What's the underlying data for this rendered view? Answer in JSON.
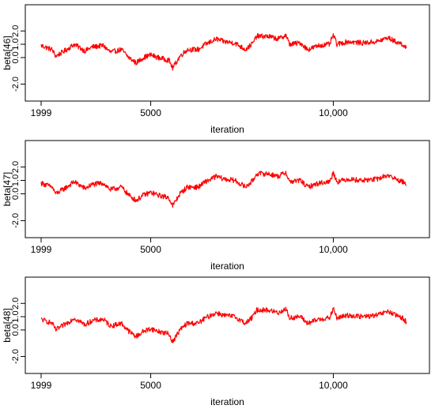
{
  "chart_data": [
    {
      "type": "line",
      "ylabel": "beta[46]",
      "xlabel": "iteration",
      "xlim": [
        1999,
        12200
      ],
      "ylim": [
        -2.8,
        3.5
      ],
      "xticks": [
        1999,
        5000,
        10000
      ],
      "xtick_labels": [
        "1999",
        "5000",
        "10,000"
      ],
      "yticks": [
        -2.0,
        0.0,
        1.0,
        2.0
      ],
      "ytick_labels": [
        "-2.0",
        "0.0",
        "1.0",
        "2.0"
      ],
      "grid": false,
      "color": "#ff0000",
      "series": [
        {
          "x": [
            2000,
            2300,
            2400,
            2700,
            2900,
            3200,
            3400,
            3700,
            3900,
            4200,
            4400,
            4600,
            4800,
            5000,
            5200,
            5500,
            5600,
            5800,
            6000,
            6300,
            6500,
            6800,
            7000,
            7300,
            7600,
            7800,
            7900,
            8200,
            8500,
            8700,
            8800,
            9100,
            9300,
            9600,
            9900,
            10000,
            10100,
            10400,
            10800,
            11200,
            11500,
            11700,
            11900,
            12000
          ],
          "y": [
            0.9,
            0.6,
            0.1,
            0.6,
            1.0,
            0.5,
            0.8,
            0.9,
            0.4,
            0.6,
            0.0,
            -0.4,
            0.0,
            0.2,
            0.0,
            -0.2,
            -0.8,
            0.1,
            0.6,
            0.6,
            1.0,
            1.4,
            1.2,
            1.1,
            0.6,
            1.1,
            1.6,
            1.6,
            1.4,
            1.7,
            1.0,
            1.1,
            0.6,
            0.9,
            1.0,
            1.7,
            1.0,
            1.2,
            1.1,
            1.2,
            1.5,
            1.2,
            1.0,
            0.7
          ]
        }
      ]
    },
    {
      "type": "line",
      "ylabel": "beta[47]",
      "xlabel": "iteration",
      "xlim": [
        1999,
        12200
      ],
      "ylim": [
        -2.8,
        3.5
      ],
      "xticks": [
        1999,
        5000,
        10000
      ],
      "xtick_labels": [
        "1999",
        "5000",
        "10,000"
      ],
      "yticks": [
        -2.0,
        0.0,
        1.0,
        2.0
      ],
      "ytick_labels": [
        "-2.0",
        "0.0",
        "1.0",
        "2.0"
      ],
      "grid": false,
      "color": "#ff0000",
      "series": [
        {
          "x": [
            2000,
            2300,
            2400,
            2700,
            2900,
            3200,
            3400,
            3700,
            3900,
            4200,
            4400,
            4600,
            4800,
            5000,
            5200,
            5500,
            5600,
            5800,
            6000,
            6300,
            6500,
            6800,
            7000,
            7300,
            7600,
            7800,
            7900,
            8200,
            8500,
            8700,
            8800,
            9100,
            9300,
            9600,
            9900,
            10000,
            10100,
            10400,
            10800,
            11200,
            11500,
            11700,
            11900,
            12000
          ],
          "y": [
            0.8,
            0.5,
            0.0,
            0.5,
            0.9,
            0.4,
            0.7,
            0.8,
            0.3,
            0.5,
            -0.1,
            -0.5,
            -0.1,
            0.1,
            -0.1,
            -0.3,
            -0.9,
            0.0,
            0.5,
            0.5,
            0.9,
            1.3,
            1.1,
            1.0,
            0.5,
            1.0,
            1.5,
            1.5,
            1.3,
            1.6,
            0.9,
            1.0,
            0.5,
            0.8,
            0.9,
            1.6,
            0.9,
            1.1,
            1.0,
            1.1,
            1.4,
            1.1,
            0.9,
            0.6
          ]
        }
      ]
    },
    {
      "type": "line",
      "ylabel": "beta[48]",
      "xlabel": "iteration",
      "xlim": [
        1999,
        12200
      ],
      "ylim": [
        -2.8,
        3.5
      ],
      "xticks": [
        1999,
        5000,
        10000
      ],
      "xtick_labels": [
        "1999",
        "5000",
        "10,000"
      ],
      "yticks": [
        -2.0,
        0.0,
        1.0,
        2.0
      ],
      "ytick_labels": [
        "-2.0",
        "0.0",
        "1.0",
        "2.0"
      ],
      "grid": false,
      "color": "#ff0000",
      "series": [
        {
          "x": [
            2000,
            2300,
            2400,
            2700,
            2900,
            3200,
            3400,
            3700,
            3900,
            4200,
            4400,
            4600,
            4800,
            5000,
            5200,
            5500,
            5600,
            5800,
            6000,
            6300,
            6500,
            6800,
            7000,
            7300,
            7600,
            7800,
            7900,
            8200,
            8500,
            8700,
            8800,
            9100,
            9300,
            9600,
            9900,
            10000,
            10100,
            10400,
            10800,
            11200,
            11500,
            11700,
            11900,
            12000
          ],
          "y": [
            0.8,
            0.5,
            0.0,
            0.5,
            0.9,
            0.4,
            0.7,
            0.8,
            0.3,
            0.5,
            -0.1,
            -0.5,
            -0.1,
            0.1,
            -0.1,
            -0.3,
            -0.9,
            0.0,
            0.5,
            0.5,
            0.9,
            1.3,
            1.1,
            1.0,
            0.5,
            1.0,
            1.5,
            1.5,
            1.3,
            1.6,
            0.9,
            1.0,
            0.5,
            0.8,
            0.9,
            1.6,
            0.9,
            1.1,
            1.0,
            1.1,
            1.4,
            1.1,
            0.9,
            0.6
          ]
        }
      ]
    }
  ]
}
